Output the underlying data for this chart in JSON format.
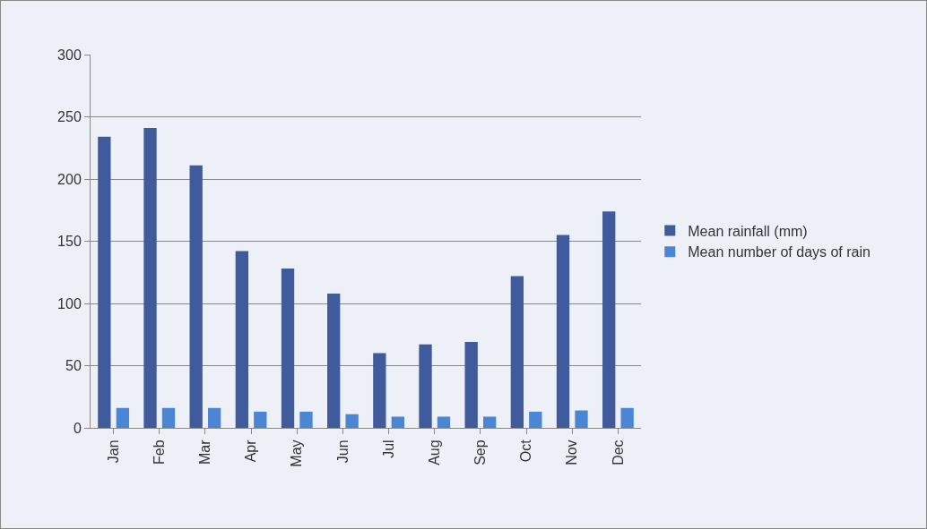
{
  "chart_data": {
    "type": "bar",
    "categories": [
      "Jan",
      "Feb",
      "Mar",
      "Apr",
      "May",
      "Jun",
      "Jul",
      "Aug",
      "Sep",
      "Oct",
      "Nov",
      "Dec"
    ],
    "series": [
      {
        "name": "Mean rainfall (mm)",
        "color": "#3f5b9c",
        "values": [
          234,
          241,
          211,
          142,
          128,
          108,
          60,
          67,
          69,
          122,
          155,
          174
        ]
      },
      {
        "name": "Mean number of days of rain",
        "color": "#4a86d4",
        "values": [
          16,
          16,
          16,
          13,
          13,
          11,
          9,
          9,
          9,
          13,
          14,
          16
        ]
      }
    ],
    "ylim": [
      0,
      300
    ],
    "yticks": [
      0,
      50,
      100,
      150,
      200,
      250,
      300
    ],
    "grid": "y",
    "legend": "right"
  }
}
